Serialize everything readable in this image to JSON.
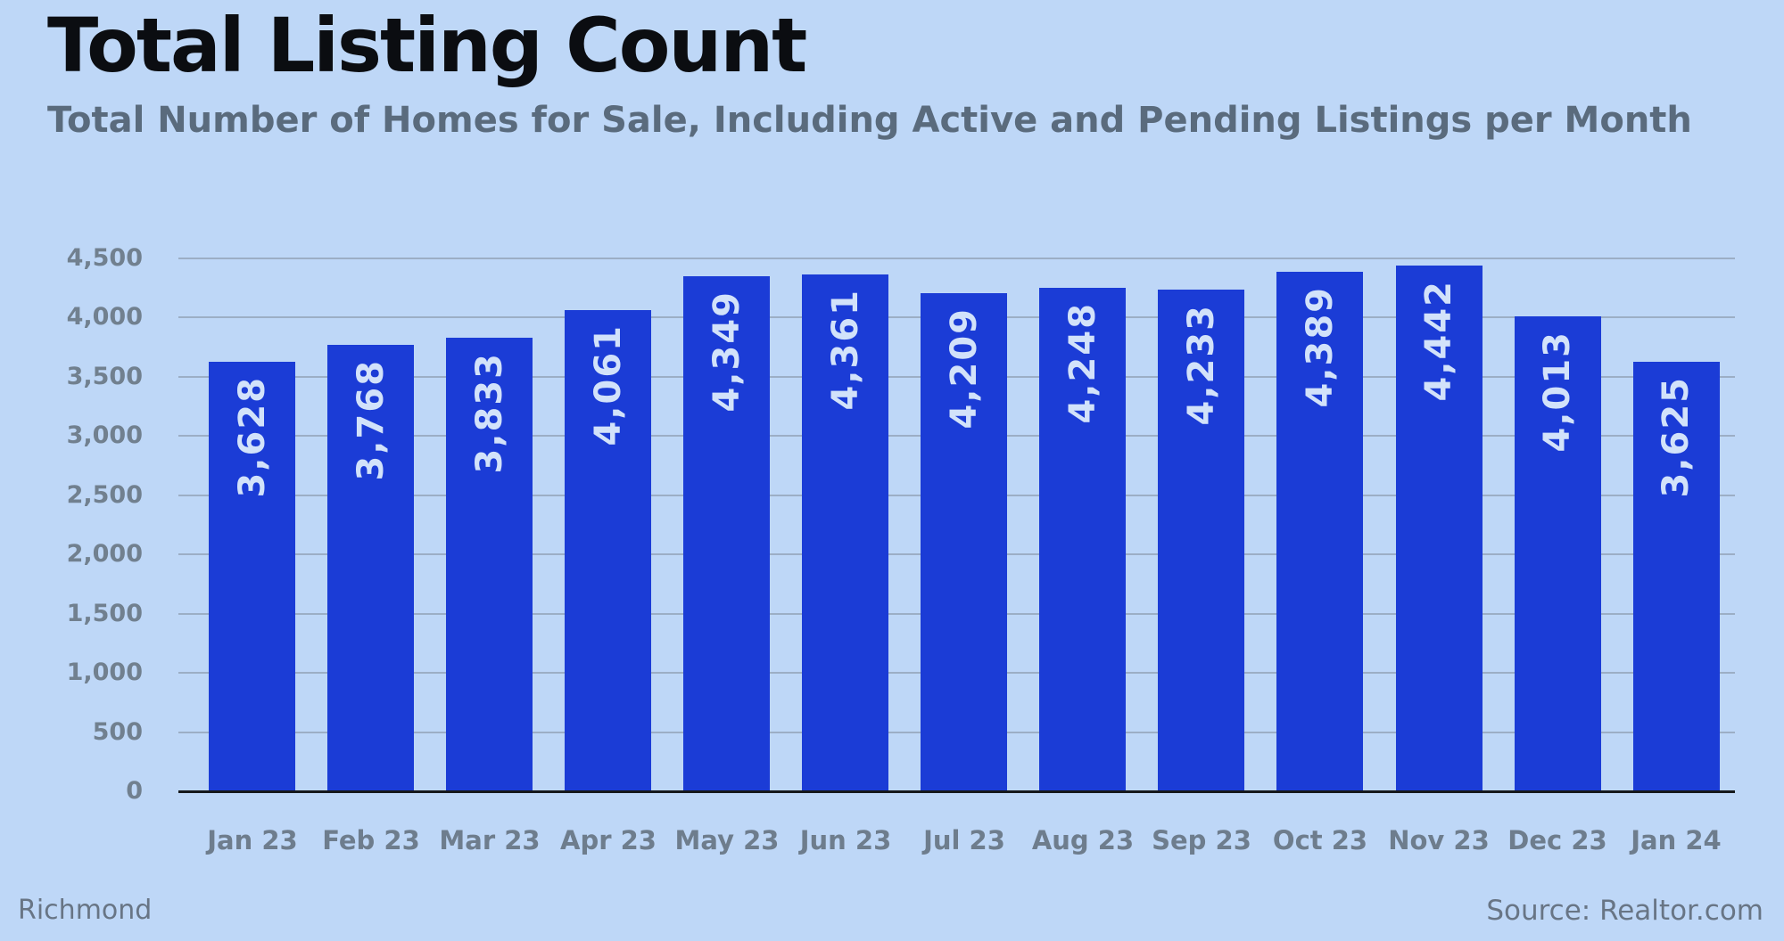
{
  "header": {
    "title": "Total Listing Count",
    "subtitle": "Total Number of Homes for Sale, Including Active and Pending Listings per Month"
  },
  "footer": {
    "location": "Richmond",
    "source": "Source: Realtor.com"
  },
  "chart_data": {
    "type": "bar",
    "title": "Total Listing Count",
    "subtitle": "Total Number of Homes for Sale, Including Active and Pending Listings per Month",
    "categories": [
      "Jan 23",
      "Feb 23",
      "Mar 23",
      "Apr 23",
      "May 23",
      "Jun 23",
      "Jul 23",
      "Aug 23",
      "Sep 23",
      "Oct 23",
      "Nov 23",
      "Dec 23",
      "Jan 24"
    ],
    "values": [
      3628,
      3768,
      3833,
      4061,
      4349,
      4361,
      4209,
      4248,
      4233,
      4389,
      4442,
      4013,
      3625
    ],
    "value_labels": [
      "3,628",
      "3,768",
      "3,833",
      "4,061",
      "4,349",
      "4,361",
      "4,209",
      "4,248",
      "4,233",
      "4,389",
      "4,442",
      "4,013",
      "3,625"
    ],
    "y_tick_values": [
      0,
      500,
      1000,
      1500,
      2000,
      2500,
      3000,
      3500,
      4000,
      4500
    ],
    "y_tick_labels": [
      "0",
      "500",
      "1,000",
      "1,500",
      "2,000",
      "2,500",
      "3,000",
      "3,500",
      "4,000",
      "4,500"
    ],
    "ylim": [
      0,
      4500
    ],
    "xlabel": "",
    "ylabel": "",
    "grid": "horizontal",
    "legend_position": "none",
    "bar_value_label_rotation": "bottom-to-top",
    "colors": {
      "background": "#BED7F7",
      "bar": "#1B3CD6",
      "bar_value_label": "#D2E2FA",
      "gridline": "#9CAEC5",
      "baseline": "#15181C",
      "axis_text": "#71808F",
      "title": "#0B0D11",
      "subtitle": "#5A6B7D",
      "footer_text": "#687585"
    }
  }
}
